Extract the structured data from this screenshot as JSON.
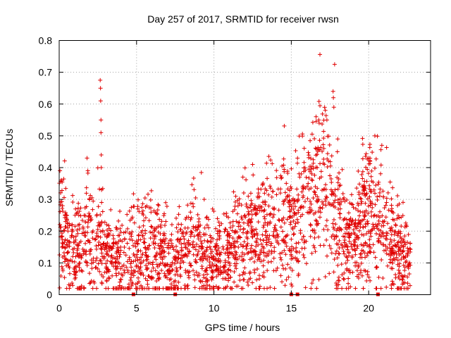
{
  "chart_data": {
    "type": "scatter",
    "title": "Day 257 of 2017, SRMTID for receiver rwsn",
    "xlabel": "GPS time / hours",
    "ylabel": "SRMTID / TECUs",
    "xlim": [
      0,
      24
    ],
    "ylim": [
      0,
      0.8
    ],
    "xticks": [
      "0",
      "5",
      "10",
      "15",
      "20"
    ],
    "xtick_values": [
      0,
      5,
      10,
      15,
      20
    ],
    "yticks": [
      "0",
      "0.1",
      "0.2",
      "0.3",
      "0.4",
      "0.5",
      "0.6",
      "0.7",
      "0.8"
    ],
    "ytick_values": [
      0,
      0.1,
      0.2,
      0.3,
      0.4,
      0.5,
      0.6,
      0.7,
      0.8
    ],
    "grid": true,
    "marker": "+",
    "color": "#e00000",
    "markers_on_axis_hours": [
      4.8,
      7.5,
      15.0,
      15.4,
      20.6
    ],
    "baseline_profile": {
      "hours": [
        0,
        0.5,
        1,
        2,
        2.5,
        3.5,
        4.5,
        5.5,
        6.5,
        7,
        7.5,
        8.5,
        9.5,
        10,
        10.5,
        11.5,
        12.5,
        13.5,
        14.5,
        15,
        15.5,
        16,
        16.5,
        17,
        17.5,
        18,
        18.5,
        19,
        19.5,
        20,
        20.5,
        21,
        21.5,
        22,
        22.7
      ],
      "values": [
        0.25,
        0.16,
        0.13,
        0.17,
        0.14,
        0.12,
        0.11,
        0.15,
        0.14,
        0.1,
        0.09,
        0.15,
        0.12,
        0.1,
        0.12,
        0.15,
        0.18,
        0.21,
        0.24,
        0.22,
        0.26,
        0.29,
        0.32,
        0.35,
        0.33,
        0.22,
        0.15,
        0.16,
        0.22,
        0.26,
        0.27,
        0.2,
        0.16,
        0.13,
        0.1
      ]
    },
    "highlighted_points": [
      {
        "x": 0.05,
        "y": 0.39
      },
      {
        "x": 1.8,
        "y": 0.43
      },
      {
        "x": 1.85,
        "y": 0.39
      },
      {
        "x": 2.65,
        "y": 0.675
      },
      {
        "x": 2.67,
        "y": 0.65
      },
      {
        "x": 2.68,
        "y": 0.61
      },
      {
        "x": 2.7,
        "y": 0.55
      },
      {
        "x": 2.7,
        "y": 0.51
      },
      {
        "x": 2.72,
        "y": 0.44
      },
      {
        "x": 2.72,
        "y": 0.4
      },
      {
        "x": 2.74,
        "y": 0.33
      },
      {
        "x": 12.5,
        "y": 0.41
      },
      {
        "x": 16.6,
        "y": 0.56
      },
      {
        "x": 16.8,
        "y": 0.54
      },
      {
        "x": 17.2,
        "y": 0.58
      },
      {
        "x": 17.3,
        "y": 0.55
      },
      {
        "x": 17.7,
        "y": 0.64
      },
      {
        "x": 17.72,
        "y": 0.62
      },
      {
        "x": 17.75,
        "y": 0.59
      },
      {
        "x": 17.8,
        "y": 0.725
      },
      {
        "x": 18.0,
        "y": 0.49
      },
      {
        "x": 20.4,
        "y": 0.5
      },
      {
        "x": 20.85,
        "y": 0.47
      },
      {
        "x": 20.0,
        "y": 0.43
      }
    ]
  }
}
